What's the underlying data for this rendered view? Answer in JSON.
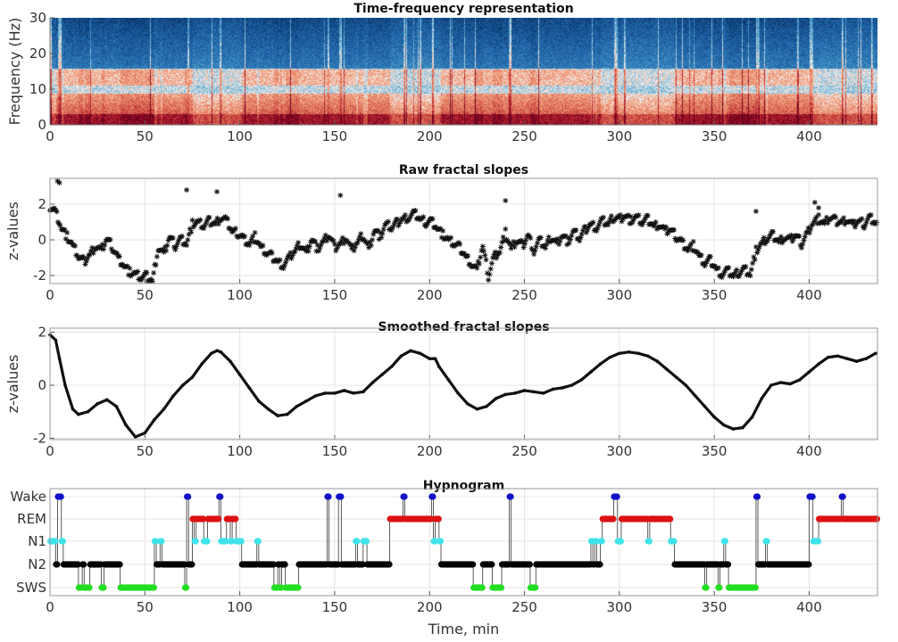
{
  "chart_data": [
    {
      "type": "heatmap",
      "title": "Time-frequency representation",
      "ylabel": "Frequency (Hz)",
      "xlabel": "",
      "xlim": [
        0,
        436
      ],
      "ylim": [
        0,
        30
      ],
      "xticks": [
        "0",
        "50",
        "100",
        "150",
        "200",
        "250",
        "300",
        "350",
        "400"
      ],
      "yticks": [
        "0",
        "10",
        "20",
        "30"
      ],
      "colormap": "red-white-blue (red = high power)"
    },
    {
      "type": "scatter",
      "title": "Raw fractal slopes",
      "ylabel": "z-values",
      "xlim": [
        0,
        436
      ],
      "ylim": [
        -2.45,
        3.45
      ],
      "xticks": [
        "0",
        "50",
        "100",
        "150",
        "200",
        "250",
        "300",
        "350",
        "400"
      ],
      "yticks": [
        "-2",
        "0",
        "2"
      ],
      "x_start": 0,
      "x_step": 3,
      "values": [
        1.9,
        1.6,
        0.7,
        0.2,
        -0.3,
        -0.9,
        -1.2,
        -0.8,
        -0.3,
        -0.6,
        0.1,
        -0.4,
        -1.0,
        -1.4,
        -1.8,
        -1.9,
        -2.1,
        -2.0,
        -2.3,
        -0.4,
        -0.8,
        0.2,
        -0.3,
        0.1,
        -0.2,
        0.9,
        1.0,
        0.8,
        1.1,
        0.9,
        1.3,
        1.1,
        0.5,
        0.4,
        0.1,
        -0.2,
        0.2,
        -0.4,
        -0.7,
        -0.9,
        -1.2,
        -1.4,
        -1.0,
        -0.6,
        -0.2,
        -0.7,
        0.1,
        -0.5,
        -0.1,
        0.3,
        -0.4,
        -0.2,
        0.2,
        -0.6,
        -0.1,
        0.3,
        -0.5,
        0.6,
        0.2,
        0.9,
        0.7,
        1.0,
        1.2,
        1.3,
        1.5,
        1.2,
        1.0,
        1.1,
        0.7,
        0.3,
        0.0,
        -0.2,
        -0.4,
        -0.9,
        -1.3,
        -1.7,
        -0.3,
        -2.0,
        -0.9,
        -0.6,
        0.4,
        -0.5,
        0.0,
        -0.3,
        0.3,
        -0.6,
        0.0,
        -0.4,
        0.2,
        -0.2,
        0.3,
        -0.1,
        0.5,
        0.1,
        0.6,
        0.9,
        0.7,
        1.1,
        0.9,
        1.3,
        1.2,
        1.4,
        1.1,
        1.3,
        1.0,
        1.2,
        0.8,
        0.9,
        0.5,
        0.6,
        0.2,
        -0.1,
        -0.5,
        -0.3,
        -0.9,
        -1.3,
        -1.1,
        -1.6,
        -1.9,
        -1.7,
        -2.0,
        -1.8,
        -1.6,
        -1.9,
        -0.6,
        -0.2,
        0.1,
        0.3,
        -0.1,
        0.2,
        0.0,
        0.3,
        -0.2,
        0.4,
        1.0,
        1.2,
        0.9,
        1.3,
        1.1,
        1.0,
        1.2,
        0.8,
        1.1,
        0.9,
        1.3,
        1.0
      ],
      "outliers": [
        [
          4,
          3.3
        ],
        [
          5,
          3.2
        ],
        [
          72,
          2.8
        ],
        [
          88,
          2.7
        ],
        [
          153,
          2.5
        ],
        [
          240,
          2.2
        ],
        [
          372,
          1.6
        ],
        [
          403,
          2.1
        ],
        [
          405,
          1.8
        ]
      ],
      "marker": "asterisk"
    },
    {
      "type": "line",
      "title": "Smoothed fractal slopes",
      "ylabel": "z-values",
      "xlim": [
        0,
        436
      ],
      "ylim": [
        -2.05,
        2.15
      ],
      "xticks": [
        "0",
        "50",
        "100",
        "150",
        "200",
        "250",
        "300",
        "350",
        "400"
      ],
      "yticks": [
        "-2",
        "0",
        "2"
      ],
      "x": [
        0,
        3,
        5,
        8,
        12,
        15,
        20,
        25,
        30,
        35,
        40,
        45,
        50,
        55,
        60,
        65,
        70,
        75,
        80,
        85,
        88,
        90,
        95,
        100,
        105,
        110,
        115,
        120,
        125,
        130,
        135,
        140,
        145,
        150,
        155,
        160,
        165,
        170,
        175,
        180,
        185,
        190,
        195,
        200,
        203,
        205,
        210,
        215,
        220,
        225,
        230,
        235,
        240,
        245,
        250,
        255,
        260,
        265,
        270,
        275,
        280,
        285,
        290,
        295,
        300,
        305,
        310,
        315,
        320,
        325,
        330,
        335,
        340,
        345,
        350,
        355,
        360,
        365,
        370,
        375,
        380,
        385,
        390,
        395,
        400,
        405,
        410,
        415,
        420,
        425,
        430,
        435
      ],
      "y": [
        1.9,
        1.7,
        1.0,
        0,
        -0.9,
        -1.1,
        -1.0,
        -0.7,
        -0.55,
        -0.8,
        -1.5,
        -1.95,
        -1.8,
        -1.3,
        -0.9,
        -0.4,
        0,
        0.3,
        0.8,
        1.2,
        1.3,
        1.25,
        0.9,
        0.4,
        -0.1,
        -0.6,
        -0.9,
        -1.15,
        -1.1,
        -0.8,
        -0.6,
        -0.4,
        -0.3,
        -0.3,
        -0.2,
        -0.3,
        -0.25,
        0.1,
        0.4,
        0.7,
        1.1,
        1.3,
        1.2,
        1.0,
        1.0,
        0.7,
        0.2,
        -0.3,
        -0.7,
        -0.9,
        -0.8,
        -0.5,
        -0.35,
        -0.3,
        -0.2,
        -0.25,
        -0.3,
        -0.15,
        -0.1,
        0,
        0.2,
        0.5,
        0.8,
        1.05,
        1.2,
        1.25,
        1.2,
        1.1,
        0.9,
        0.6,
        0.3,
        0,
        -0.4,
        -0.8,
        -1.2,
        -1.5,
        -1.65,
        -1.6,
        -1.2,
        -0.5,
        0,
        0.1,
        0.05,
        0.2,
        0.5,
        0.8,
        1.05,
        1.1,
        1.0,
        0.9,
        1.0,
        1.2
      ]
    },
    {
      "type": "line",
      "title": "Hypnogram",
      "xlabel": "Time, min",
      "xlim": [
        0,
        436
      ],
      "xticks": [
        "0",
        "50",
        "100",
        "150",
        "200",
        "250",
        "300",
        "350",
        "400"
      ],
      "stages": [
        "Wake",
        "REM",
        "N1",
        "N2",
        "SWS"
      ],
      "stage_colors": {
        "Wake": "#1010c8",
        "REM": "#dd1111",
        "N1": "#3fe3ea",
        "N2": "#000000",
        "SWS": "#22dd22"
      },
      "epoch_min": 0.5,
      "segments": [
        [
          0,
          3,
          "N1"
        ],
        [
          3,
          4,
          "N2"
        ],
        [
          4,
          6,
          "Wake"
        ],
        [
          6,
          7,
          "N1"
        ],
        [
          7,
          15,
          "N2"
        ],
        [
          15,
          17,
          "SWS"
        ],
        [
          17,
          18,
          "N2"
        ],
        [
          18,
          21,
          "SWS"
        ],
        [
          21,
          27,
          "N2"
        ],
        [
          27,
          28.5,
          "SWS"
        ],
        [
          28.5,
          37,
          "N2"
        ],
        [
          37,
          55,
          "SWS"
        ],
        [
          55,
          56,
          "N1"
        ],
        [
          56,
          58,
          "N2"
        ],
        [
          58,
          59,
          "N1"
        ],
        [
          59,
          71,
          "N2"
        ],
        [
          71,
          72,
          "SWS"
        ],
        [
          72,
          73,
          "Wake"
        ],
        [
          73,
          75,
          "N2"
        ],
        [
          75,
          76,
          "REM"
        ],
        [
          76,
          77,
          "N1"
        ],
        [
          77,
          81,
          "REM"
        ],
        [
          81,
          83,
          "N1"
        ],
        [
          83,
          89,
          "REM"
        ],
        [
          89,
          90,
          "Wake"
        ],
        [
          90,
          93,
          "N1"
        ],
        [
          93,
          95,
          "REM"
        ],
        [
          95,
          96,
          "N1"
        ],
        [
          96,
          98,
          "REM"
        ],
        [
          98,
          101,
          "N1"
        ],
        [
          101,
          109,
          "N2"
        ],
        [
          109,
          110,
          "N1"
        ],
        [
          110,
          118,
          "N2"
        ],
        [
          118,
          120,
          "SWS"
        ],
        [
          120,
          121,
          "N2"
        ],
        [
          121,
          122,
          "SWS"
        ],
        [
          122,
          124,
          "N2"
        ],
        [
          124,
          131,
          "SWS"
        ],
        [
          131,
          146,
          "N2"
        ],
        [
          146,
          147,
          "Wake"
        ],
        [
          147,
          152,
          "N2"
        ],
        [
          152,
          153.5,
          "Wake"
        ],
        [
          153.5,
          161,
          "N2"
        ],
        [
          161,
          162,
          "N1"
        ],
        [
          162,
          165,
          "N2"
        ],
        [
          165,
          167,
          "N1"
        ],
        [
          167,
          179,
          "N2"
        ],
        [
          179,
          186,
          "REM"
        ],
        [
          186,
          187,
          "Wake"
        ],
        [
          187,
          201,
          "REM"
        ],
        [
          201,
          202,
          "Wake"
        ],
        [
          202,
          203,
          "N1"
        ],
        [
          203,
          205,
          "REM"
        ],
        [
          205,
          206,
          "N1"
        ],
        [
          206,
          223,
          "N2"
        ],
        [
          223,
          228,
          "SWS"
        ],
        [
          228,
          233,
          "N2"
        ],
        [
          233,
          238,
          "SWS"
        ],
        [
          238,
          242,
          "N2"
        ],
        [
          242,
          243,
          "Wake"
        ],
        [
          243,
          253,
          "N2"
        ],
        [
          253,
          256,
          "SWS"
        ],
        [
          256,
          285,
          "N2"
        ],
        [
          285,
          286,
          "N1"
        ],
        [
          286,
          287,
          "N2"
        ],
        [
          287,
          288,
          "N1"
        ],
        [
          288,
          290,
          "N2"
        ],
        [
          290,
          291,
          "N1"
        ],
        [
          291,
          297,
          "REM"
        ],
        [
          297,
          299,
          "Wake"
        ],
        [
          299,
          301,
          "N1"
        ],
        [
          301,
          315,
          "REM"
        ],
        [
          315,
          316,
          "N1"
        ],
        [
          316,
          327,
          "REM"
        ],
        [
          327,
          329,
          "N1"
        ],
        [
          329,
          345,
          "N2"
        ],
        [
          345,
          346,
          "SWS"
        ],
        [
          346,
          352,
          "N2"
        ],
        [
          352,
          353,
          "SWS"
        ],
        [
          353,
          355,
          "N2"
        ],
        [
          355,
          356,
          "N1"
        ],
        [
          356,
          357.5,
          "N2"
        ],
        [
          357.5,
          372,
          "SWS"
        ],
        [
          372,
          373,
          "Wake"
        ],
        [
          373,
          377,
          "N2"
        ],
        [
          377,
          378,
          "N1"
        ],
        [
          378,
          400,
          "N2"
        ],
        [
          400,
          402,
          "Wake"
        ],
        [
          402,
          405,
          "N1"
        ],
        [
          405,
          417,
          "REM"
        ],
        [
          417,
          418,
          "Wake"
        ],
        [
          418,
          436,
          "REM"
        ]
      ]
    }
  ]
}
